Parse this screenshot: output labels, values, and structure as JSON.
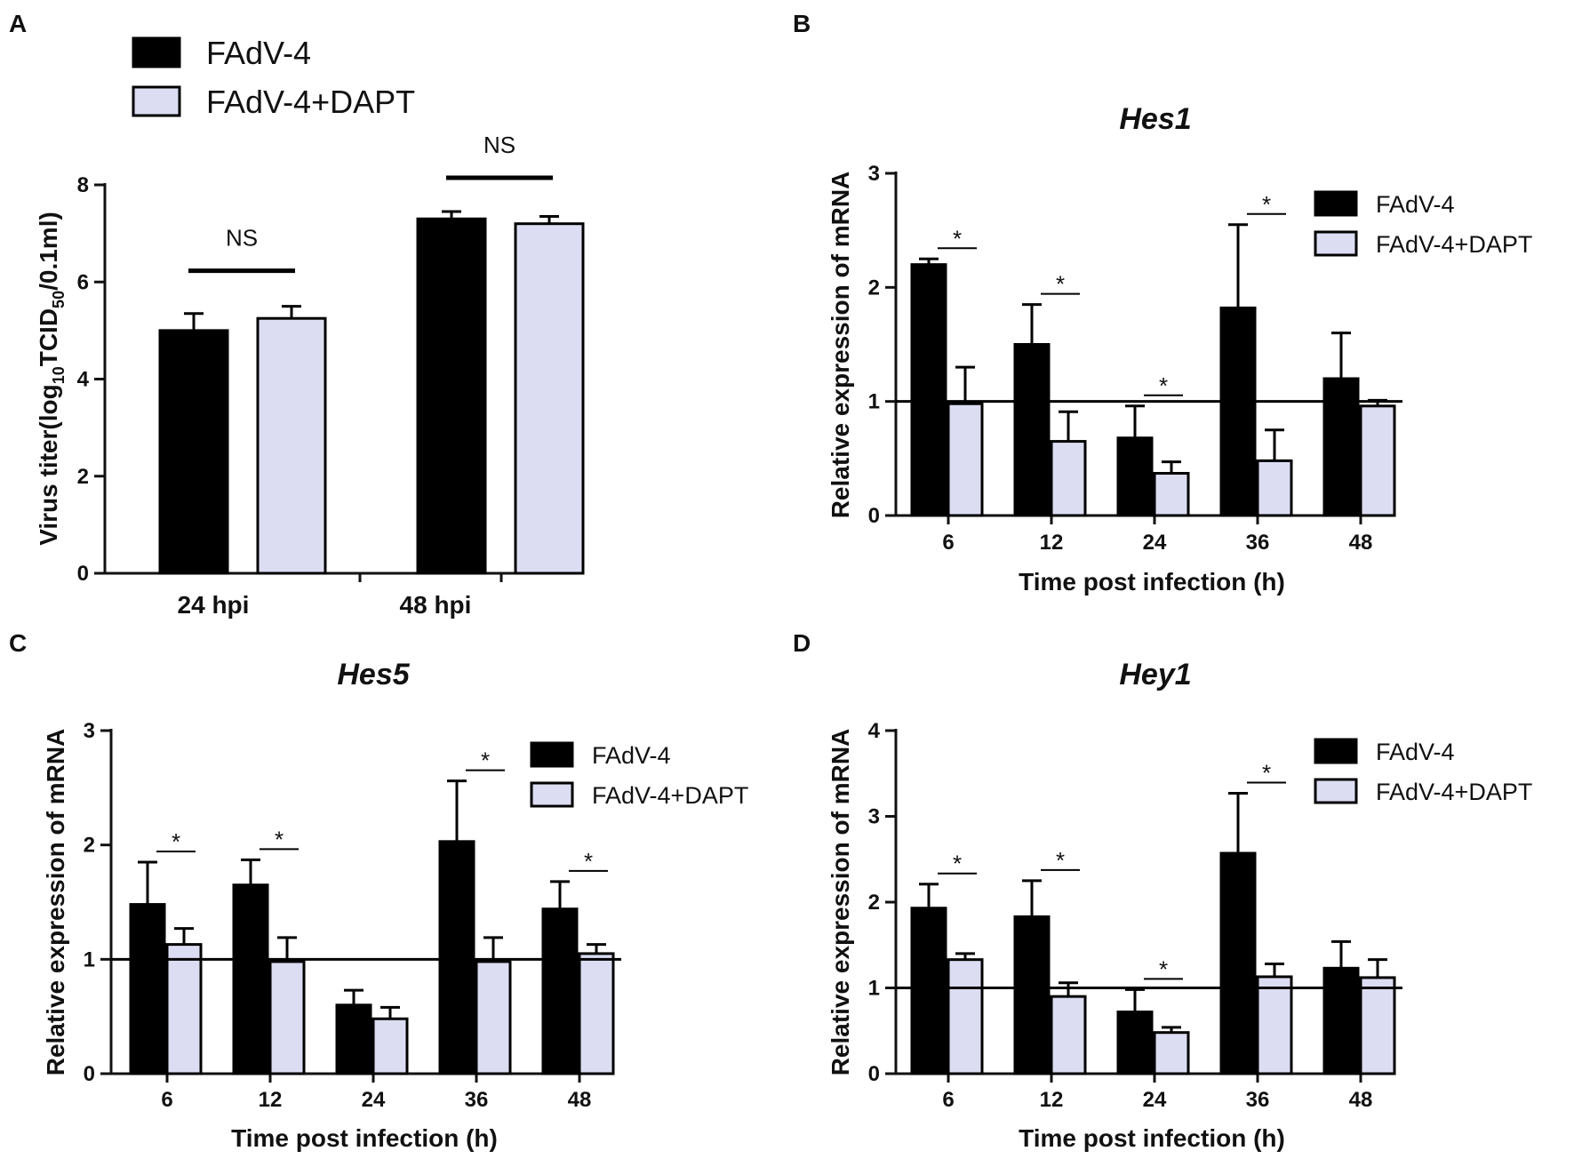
{
  "figure": {
    "panel_letters": [
      "A",
      "B",
      "C",
      "D"
    ]
  },
  "colors": {
    "series1": "#000000",
    "series2": "#dcdcf2",
    "axis": "#111111"
  },
  "chart_data": [
    {
      "panel": "A",
      "type": "bar",
      "title": "",
      "ylabel_parts": [
        "Virus titer(log",
        "10",
        "TCID",
        "50",
        "/0.1ml)"
      ],
      "xlabel": "",
      "categories": [
        "24 hpi",
        "48 hpi"
      ],
      "ylim": [
        0,
        8
      ],
      "yticks": [
        "0",
        "2",
        "4",
        "6",
        "8"
      ],
      "series": [
        {
          "name": "FAdV-4",
          "values": [
            5.0,
            7.3
          ],
          "errors": [
            0.35,
            0.15
          ]
        },
        {
          "name": "FAdV-4+DAPT",
          "values": [
            5.25,
            7.2
          ],
          "errors": [
            0.25,
            0.15
          ]
        }
      ],
      "significance": [
        {
          "category_index": 0,
          "label": "NS"
        },
        {
          "category_index": 1,
          "label": "NS"
        }
      ],
      "legend_position": "top-left"
    },
    {
      "panel": "B",
      "type": "bar",
      "title": "Hes1",
      "ylabel": "Relative expression of mRNA",
      "xlabel": "Time post infection (h)",
      "categories": [
        "6",
        "12",
        "24",
        "36",
        "48"
      ],
      "ylim": [
        0,
        3
      ],
      "yticks": [
        "0",
        "1",
        "2",
        "3"
      ],
      "reference_line": 1,
      "series": [
        {
          "name": "FAdV-4",
          "values": [
            2.2,
            1.5,
            0.68,
            1.82,
            1.2
          ],
          "errors": [
            0.05,
            0.35,
            0.28,
            0.73,
            0.4
          ]
        },
        {
          "name": "FAdV-4+DAPT",
          "values": [
            0.98,
            0.65,
            0.37,
            0.48,
            0.96
          ],
          "errors": [
            0.32,
            0.26,
            0.1,
            0.27,
            0.05
          ]
        }
      ],
      "significance": [
        {
          "category_index": 0,
          "label": "*"
        },
        {
          "category_index": 1,
          "label": "*"
        },
        {
          "category_index": 2,
          "label": "*"
        },
        {
          "category_index": 3,
          "label": "*"
        }
      ],
      "legend_position": "top-right"
    },
    {
      "panel": "C",
      "type": "bar",
      "title": "Hes5",
      "ylabel": "Relative expression of mRNA",
      "xlabel": "Time post infection (h)",
      "categories": [
        "6",
        "12",
        "24",
        "36",
        "48"
      ],
      "ylim": [
        0,
        3
      ],
      "yticks": [
        "0",
        "1",
        "2",
        "3"
      ],
      "reference_line": 1,
      "series": [
        {
          "name": "FAdV-4",
          "values": [
            1.48,
            1.65,
            0.6,
            2.03,
            1.44
          ],
          "errors": [
            0.37,
            0.22,
            0.13,
            0.53,
            0.24
          ]
        },
        {
          "name": "FAdV-4+DAPT",
          "values": [
            1.13,
            0.98,
            0.48,
            0.98,
            1.05
          ],
          "errors": [
            0.14,
            0.21,
            0.1,
            0.21,
            0.08
          ]
        }
      ],
      "significance": [
        {
          "category_index": 0,
          "label": "*"
        },
        {
          "category_index": 1,
          "label": "*"
        },
        {
          "category_index": 3,
          "label": "*"
        },
        {
          "category_index": 4,
          "label": "*"
        }
      ],
      "legend_position": "top-right"
    },
    {
      "panel": "D",
      "type": "bar",
      "title": "Hey1",
      "ylabel": "Relative expression of mRNA",
      "xlabel": "Time post infection (h)",
      "categories": [
        "6",
        "12",
        "24",
        "36",
        "48"
      ],
      "ylim": [
        0,
        4
      ],
      "yticks": [
        "0",
        "1",
        "2",
        "3",
        "4"
      ],
      "reference_line": 1,
      "series": [
        {
          "name": "FAdV-4",
          "values": [
            1.93,
            1.83,
            0.72,
            2.57,
            1.23
          ],
          "errors": [
            0.28,
            0.42,
            0.26,
            0.7,
            0.31
          ]
        },
        {
          "name": "FAdV-4+DAPT",
          "values": [
            1.33,
            0.9,
            0.48,
            1.13,
            1.12
          ],
          "errors": [
            0.07,
            0.16,
            0.06,
            0.15,
            0.21
          ]
        }
      ],
      "significance": [
        {
          "category_index": 0,
          "label": "*"
        },
        {
          "category_index": 1,
          "label": "*"
        },
        {
          "category_index": 2,
          "label": "*"
        },
        {
          "category_index": 3,
          "label": "*"
        }
      ],
      "legend_position": "top-right"
    }
  ]
}
